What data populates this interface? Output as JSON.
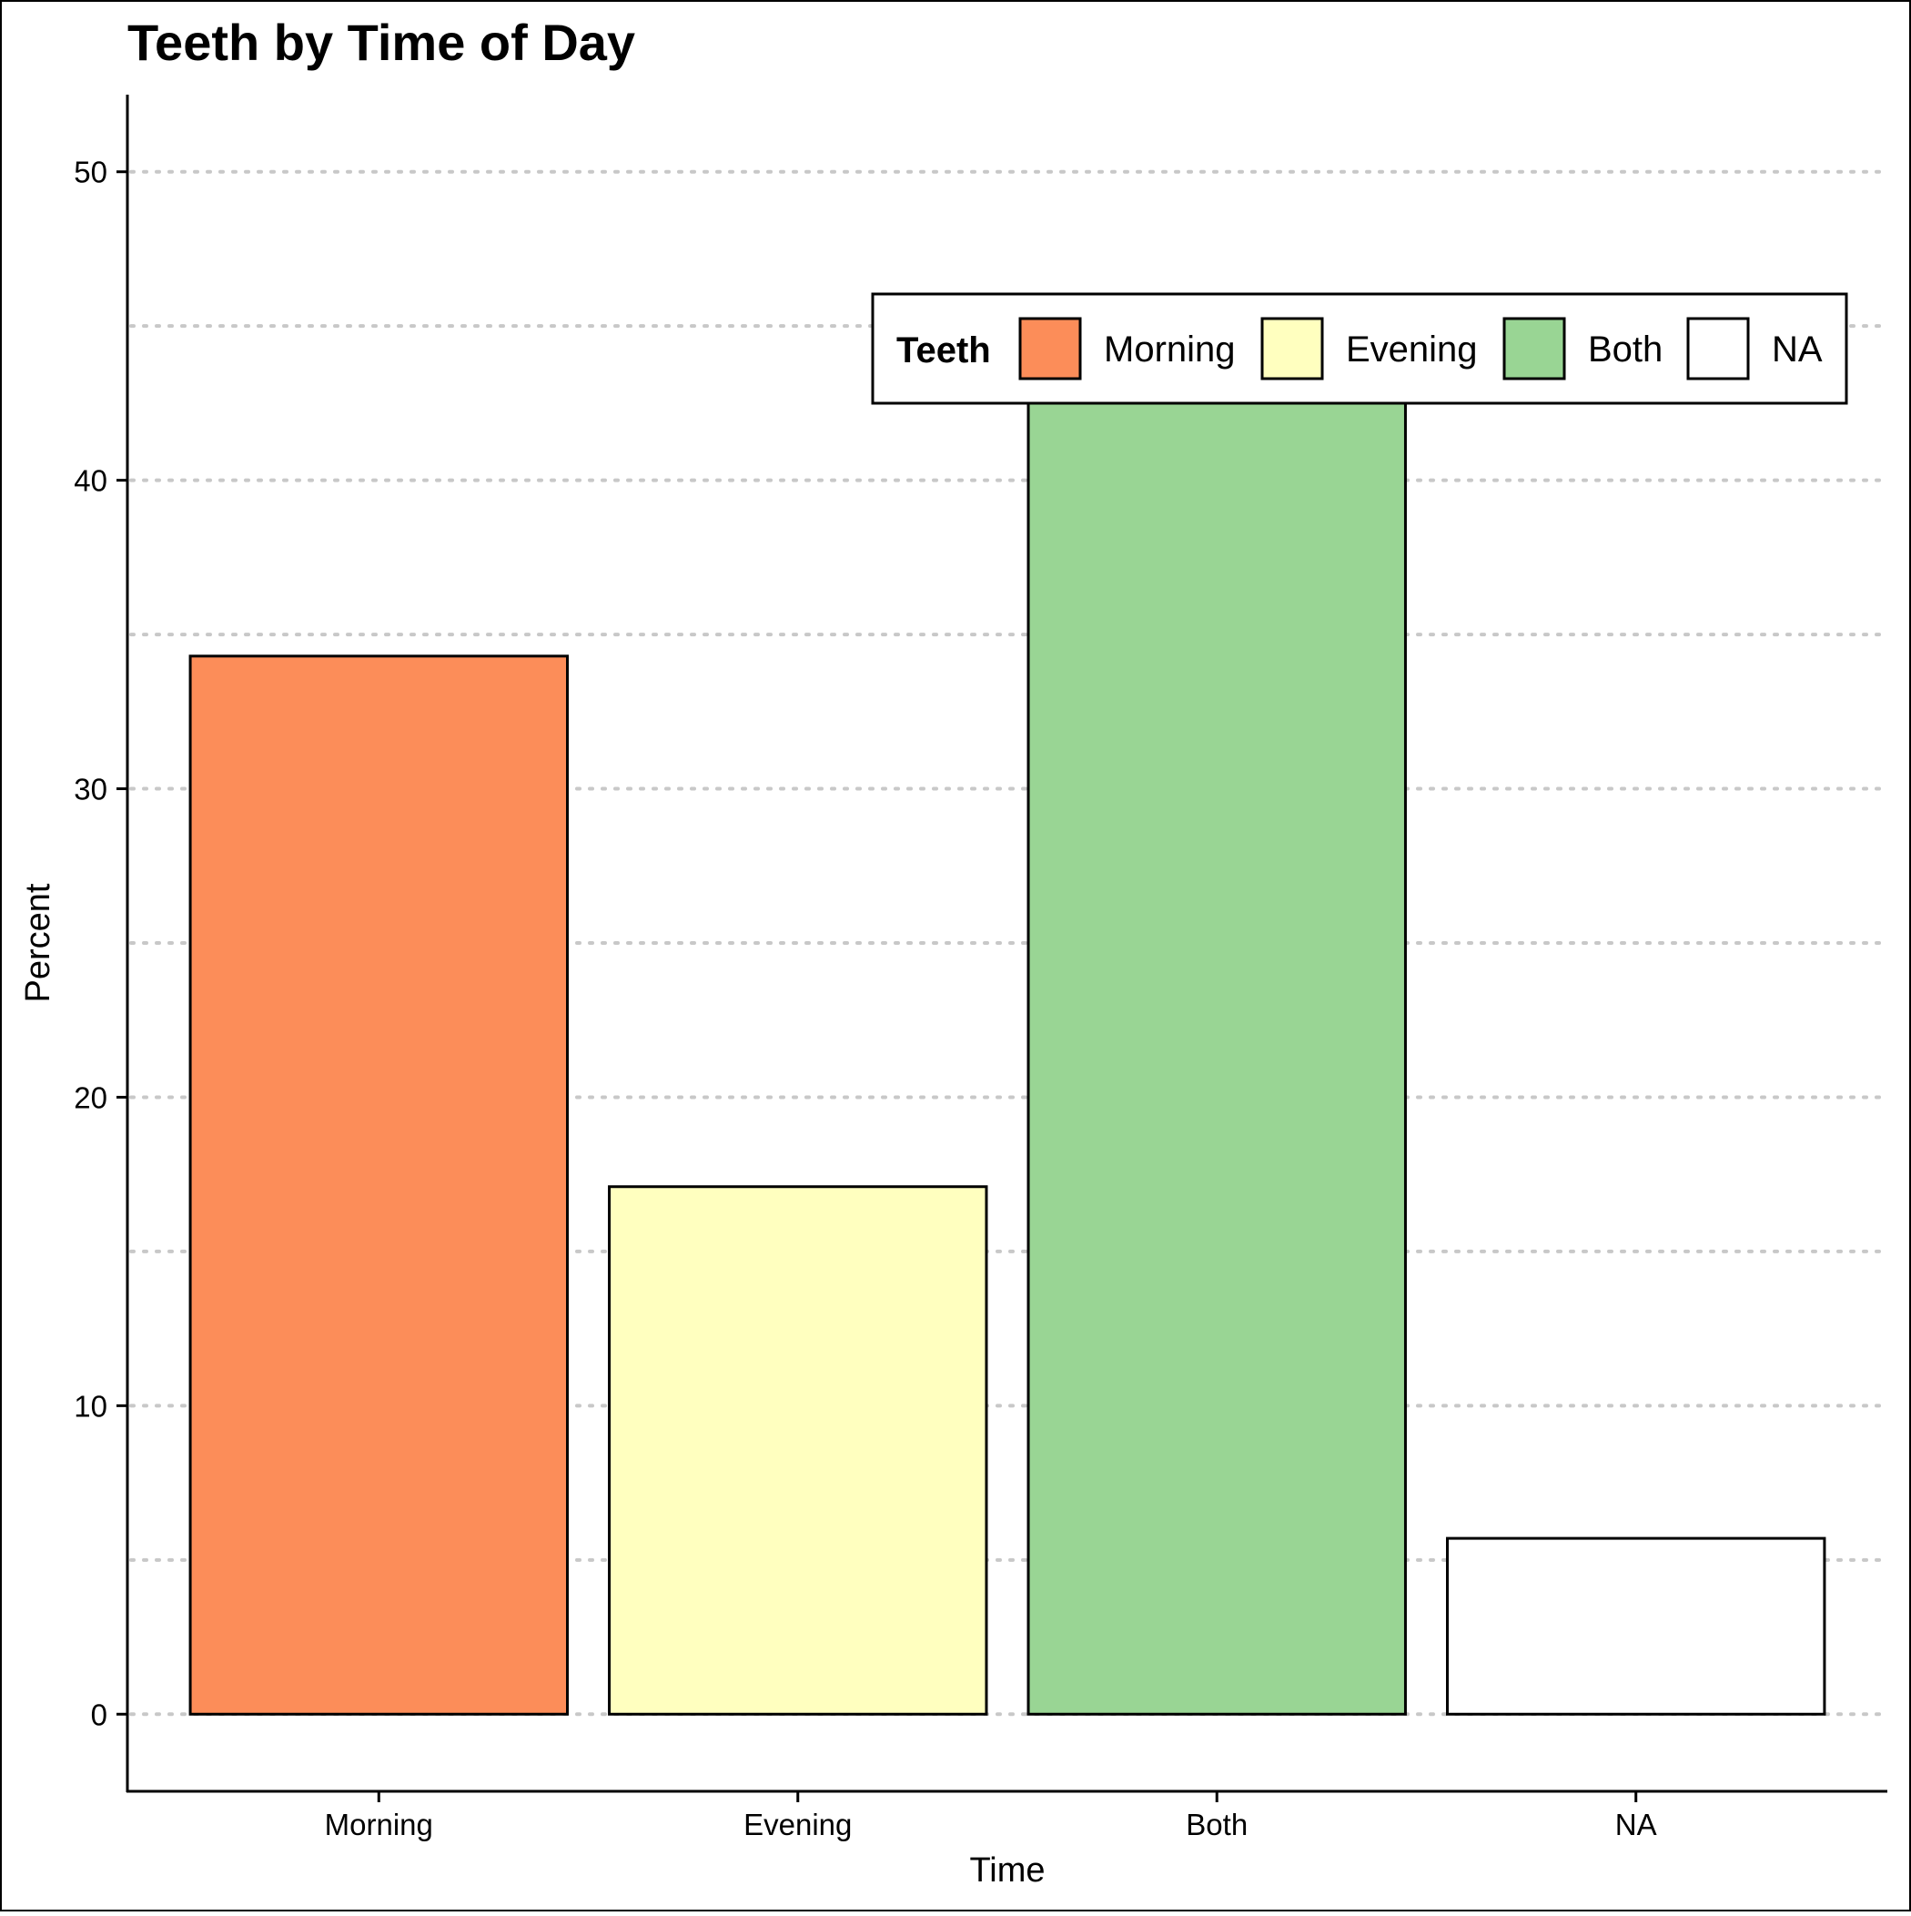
{
  "chart_data": {
    "type": "bar",
    "title": "Teeth by Time of Day",
    "xlabel": "Time",
    "ylabel": "Percent",
    "categories": [
      "Morning",
      "Evening",
      "Both",
      "NA"
    ],
    "values": [
      34.3,
      17.1,
      45.0,
      5.7
    ],
    "colors": [
      "#fc8d59",
      "#ffffbf",
      "#99d594",
      "#ffffff"
    ],
    "ylim": [
      -2.5,
      52.5
    ],
    "yticks": [
      0,
      10,
      20,
      30,
      40,
      50
    ],
    "ytick_labels": [
      "0",
      "10",
      "20",
      "30",
      "40",
      "50"
    ],
    "grid": {
      "y_major": true,
      "y_minor": true,
      "style": "dotted",
      "color": "#c8c8c8"
    },
    "legend": {
      "title": "Teeth",
      "position": "top-right",
      "items": [
        {
          "label": "Morning",
          "color": "#fc8d59"
        },
        {
          "label": "Evening",
          "color": "#ffffbf"
        },
        {
          "label": "Both",
          "color": "#99d594"
        },
        {
          "label": "NA",
          "color": "#ffffff"
        }
      ]
    }
  }
}
